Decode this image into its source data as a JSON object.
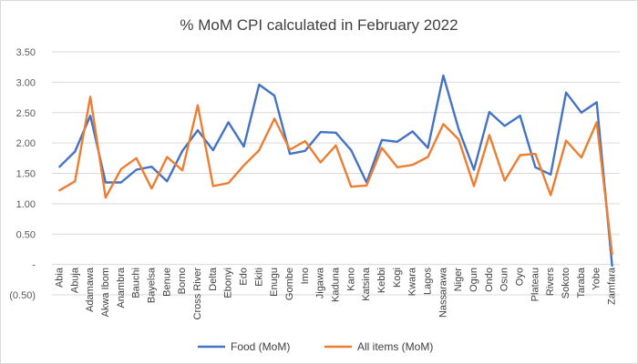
{
  "chart_data": {
    "type": "line",
    "title": "% MoM CPI calculated in February 2022",
    "xlabel": "",
    "ylabel": "",
    "ylim": [
      -0.5,
      3.5
    ],
    "ytick_values": [
      -0.5,
      0,
      0.5,
      1.0,
      1.5,
      2.0,
      2.5,
      3.0,
      3.5
    ],
    "ytick_labels": [
      "(0.50)",
      "-",
      "0.50",
      "1.00",
      "1.50",
      "2.00",
      "2.50",
      "3.00",
      "3.50"
    ],
    "grid": true,
    "legend_position": "bottom",
    "categories": [
      "Abia",
      "Abuja",
      "Adamawa",
      "Akwa Ibom",
      "Anambra",
      "Bauchi",
      "Bayelsa",
      "Benue",
      "Borno",
      "Cross River",
      "Delta",
      "Ebonyi",
      "Edo",
      "Ekiti",
      "Enugu",
      "Gombe",
      "Imo",
      "Jigawa",
      "Kaduna",
      "Kano",
      "Katsina",
      "Kebbi",
      "Kogi",
      "Kwara",
      "Lagos",
      "Nassarawa",
      "Niger",
      "Ogun",
      "Ondo",
      "Osun",
      "Oyo",
      "Plateau",
      "Rivers",
      "Sokoto",
      "Taraba",
      "Yobe",
      "Zamfara"
    ],
    "series": [
      {
        "name": "Food (MoM)",
        "color": "#4472c4",
        "values": [
          1.61,
          1.86,
          2.45,
          1.35,
          1.35,
          1.56,
          1.61,
          1.37,
          1.87,
          2.21,
          1.88,
          2.34,
          1.94,
          2.96,
          2.78,
          1.82,
          1.87,
          2.18,
          2.17,
          1.88,
          1.35,
          2.05,
          2.02,
          2.19,
          1.92,
          3.11,
          2.23,
          1.56,
          2.51,
          2.28,
          2.45,
          1.6,
          1.48,
          2.83,
          2.5,
          2.67,
          -0.02
        ]
      },
      {
        "name": "All items (MoM)",
        "color": "#ed7d31",
        "values": [
          1.22,
          1.37,
          2.76,
          1.1,
          1.57,
          1.75,
          1.25,
          1.77,
          1.55,
          2.62,
          1.29,
          1.34,
          1.63,
          1.88,
          2.4,
          1.89,
          2.03,
          1.68,
          1.96,
          1.28,
          1.3,
          1.92,
          1.6,
          1.64,
          1.77,
          2.31,
          2.06,
          1.29,
          2.13,
          1.38,
          1.8,
          1.82,
          1.14,
          2.04,
          1.76,
          2.34,
          0.17
        ]
      }
    ]
  }
}
